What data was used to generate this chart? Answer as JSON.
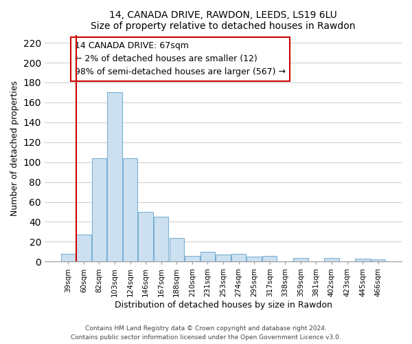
{
  "title": "14, CANADA DRIVE, RAWDON, LEEDS, LS19 6LU",
  "subtitle": "Size of property relative to detached houses in Rawdon",
  "xlabel": "Distribution of detached houses by size in Rawdon",
  "ylabel": "Number of detached properties",
  "bar_labels": [
    "39sqm",
    "60sqm",
    "82sqm",
    "103sqm",
    "124sqm",
    "146sqm",
    "167sqm",
    "188sqm",
    "210sqm",
    "231sqm",
    "253sqm",
    "274sqm",
    "295sqm",
    "317sqm",
    "338sqm",
    "359sqm",
    "381sqm",
    "402sqm",
    "423sqm",
    "445sqm",
    "466sqm"
  ],
  "bar_heights": [
    8,
    27,
    104,
    170,
    104,
    50,
    45,
    24,
    6,
    10,
    7,
    8,
    5,
    6,
    0,
    4,
    0,
    4,
    0,
    3,
    2
  ],
  "bar_color": "#cce0f0",
  "bar_edgecolor": "#7ab0d4",
  "vline_color": "#cc0000",
  "ylim": [
    0,
    228
  ],
  "yticks": [
    0,
    20,
    40,
    60,
    80,
    100,
    120,
    140,
    160,
    180,
    200,
    220
  ],
  "annotation_title": "14 CANADA DRIVE: 67sqm",
  "annotation_line1": "← 2% of detached houses are smaller (12)",
  "annotation_line2": "98% of semi-detached houses are larger (567) →",
  "annotation_box_color": "#ffffff",
  "annotation_box_edgecolor": "#cc0000",
  "footer_line1": "Contains HM Land Registry data © Crown copyright and database right 2024.",
  "footer_line2": "Contains public sector information licensed under the Open Government Licence v3.0.",
  "background_color": "#ffffff",
  "grid_color": "#cccccc"
}
